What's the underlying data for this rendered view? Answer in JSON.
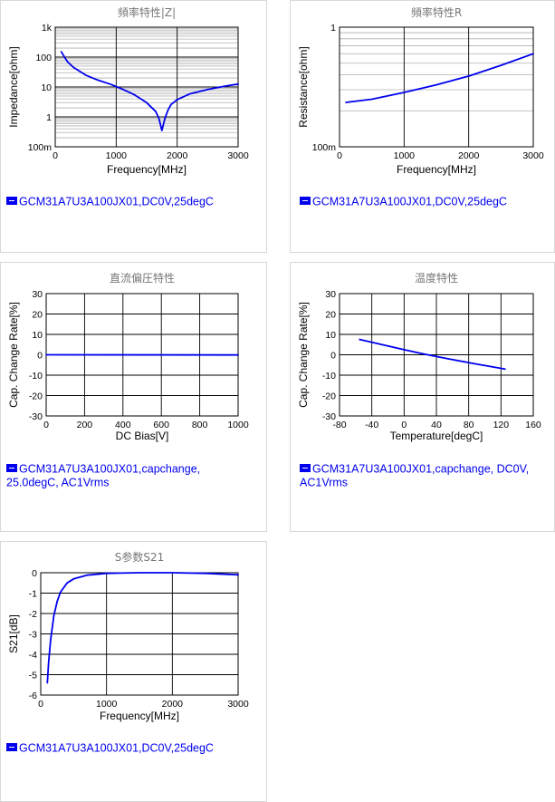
{
  "colors": {
    "series": "#0000ee",
    "grid_major": "#000000",
    "grid_minor": "#b0b0b0"
  },
  "chart_data": [
    {
      "type": "line",
      "title": "頻率特性|Z|",
      "xlabel": "Frequency[MHz]",
      "ylabel": "Impedance[ohm]",
      "xlim": [
        0,
        3000
      ],
      "ylim": [
        0.1,
        1000
      ],
      "yscale": "log",
      "x_ticks": [
        {
          "v": 0,
          "label": "0"
        },
        {
          "v": 1000,
          "label": "1000"
        },
        {
          "v": 2000,
          "label": "2000"
        },
        {
          "v": 3000,
          "label": "3000"
        }
      ],
      "y_ticks": [
        {
          "v": 1000,
          "label": "1k"
        },
        {
          "v": 100,
          "label": "100"
        },
        {
          "v": 10,
          "label": "10"
        },
        {
          "v": 1,
          "label": "1"
        },
        {
          "v": 0.1,
          "label": "100m"
        }
      ],
      "grid": true,
      "series": [
        {
          "x": [
            100,
            200,
            300,
            500,
            700,
            900,
            1100,
            1300,
            1500,
            1650,
            1700,
            1750,
            1800,
            1850,
            1900,
            2000,
            2200,
            2500,
            2800,
            3000
          ],
          "y": [
            150,
            70,
            45,
            25,
            17,
            12.5,
            8.5,
            5.5,
            3,
            1.5,
            0.9,
            0.35,
            0.9,
            1.7,
            2.6,
            3.8,
            5.8,
            8.3,
            10.8,
            12.5
          ]
        }
      ],
      "legend": "GCM31A7U3A100JX01,DC0V,25degC"
    },
    {
      "type": "line",
      "title": "頻率特性R",
      "xlabel": "Frequency[MHz]",
      "ylabel": "Resistance[ohm]",
      "xlim": [
        0,
        3000
      ],
      "ylim": [
        0.1,
        1
      ],
      "yscale": "log",
      "x_ticks": [
        {
          "v": 0,
          "label": "0"
        },
        {
          "v": 1000,
          "label": "1000"
        },
        {
          "v": 2000,
          "label": "2000"
        },
        {
          "v": 3000,
          "label": "3000"
        }
      ],
      "y_ticks": [
        {
          "v": 1,
          "label": "1"
        },
        {
          "v": 0.1,
          "label": "100m"
        }
      ],
      "grid": true,
      "series": [
        {
          "x": [
            100,
            500,
            1000,
            1500,
            2000,
            2500,
            3000
          ],
          "y": [
            0.235,
            0.25,
            0.285,
            0.33,
            0.39,
            0.48,
            0.6
          ]
        }
      ],
      "legend": "GCM31A7U3A100JX01,DC0V,25degC"
    },
    {
      "type": "line",
      "title": "直流偏圧特性",
      "xlabel": "DC Bias[V]",
      "ylabel": "Cap. Change Rate[%]",
      "xlim": [
        0,
        1000
      ],
      "ylim": [
        -30,
        30
      ],
      "x_ticks": [
        {
          "v": 0,
          "label": "0"
        },
        {
          "v": 200,
          "label": "200"
        },
        {
          "v": 400,
          "label": "400"
        },
        {
          "v": 600,
          "label": "600"
        },
        {
          "v": 800,
          "label": "800"
        },
        {
          "v": 1000,
          "label": "1000"
        }
      ],
      "y_ticks": [
        {
          "v": 30,
          "label": "30"
        },
        {
          "v": 20,
          "label": "20"
        },
        {
          "v": 10,
          "label": "10"
        },
        {
          "v": 0,
          "label": "0"
        },
        {
          "v": -10,
          "label": "-10"
        },
        {
          "v": -20,
          "label": "-20"
        },
        {
          "v": -30,
          "label": "-30"
        }
      ],
      "grid": true,
      "series": [
        {
          "x": [
            0,
            1000
          ],
          "y": [
            0,
            -0.1
          ]
        }
      ],
      "legend": "GCM31A7U3A100JX01,capchange, 25.0degC, AC1Vrms"
    },
    {
      "type": "line",
      "title": "温度特性",
      "xlabel": "Temperature[degC]",
      "ylabel": "Cap. Change Rate[%]",
      "xlim": [
        -80,
        160
      ],
      "ylim": [
        -30,
        30
      ],
      "x_ticks": [
        {
          "v": -80,
          "label": "-80"
        },
        {
          "v": -40,
          "label": "-40"
        },
        {
          "v": 0,
          "label": "0"
        },
        {
          "v": 40,
          "label": "40"
        },
        {
          "v": 80,
          "label": "80"
        },
        {
          "v": 120,
          "label": "120"
        },
        {
          "v": 160,
          "label": "160"
        }
      ],
      "y_ticks": [
        {
          "v": 30,
          "label": "30"
        },
        {
          "v": 20,
          "label": "20"
        },
        {
          "v": 10,
          "label": "10"
        },
        {
          "v": 0,
          "label": "0"
        },
        {
          "v": -10,
          "label": "-10"
        },
        {
          "v": -20,
          "label": "-20"
        },
        {
          "v": -30,
          "label": "-30"
        }
      ],
      "grid": true,
      "series": [
        {
          "x": [
            -55,
            -25,
            0,
            25,
            50,
            85,
            125
          ],
          "y": [
            7.5,
            4.8,
            2.5,
            0.3,
            -1.6,
            -4.2,
            -7.0
          ]
        }
      ],
      "legend": "GCM31A7U3A100JX01,capchange, DC0V, AC1Vrms"
    },
    {
      "type": "line",
      "title": "S参数S21",
      "xlabel": "Frequency[MHz]",
      "ylabel": "S21[dB]",
      "xlim": [
        0,
        3000
      ],
      "ylim": [
        -6,
        0
      ],
      "x_ticks": [
        {
          "v": 0,
          "label": "0"
        },
        {
          "v": 1000,
          "label": "1000"
        },
        {
          "v": 2000,
          "label": "2000"
        },
        {
          "v": 3000,
          "label": "3000"
        }
      ],
      "y_ticks": [
        {
          "v": 0,
          "label": "0"
        },
        {
          "v": -1,
          "label": "-1"
        },
        {
          "v": -2,
          "label": "-2"
        },
        {
          "v": -3,
          "label": "-3"
        },
        {
          "v": -4,
          "label": "-4"
        },
        {
          "v": -5,
          "label": "-5"
        },
        {
          "v": -6,
          "label": "-6"
        }
      ],
      "grid": true,
      "series": [
        {
          "x": [
            100,
            120,
            150,
            200,
            250,
            300,
            400,
            500,
            700,
            1000,
            1500,
            2000,
            2500,
            3000
          ],
          "y": [
            -5.4,
            -4.4,
            -3.3,
            -2.1,
            -1.4,
            -0.95,
            -0.5,
            -0.3,
            -0.12,
            -0.03,
            0,
            0,
            -0.03,
            -0.1
          ]
        }
      ],
      "legend": "GCM31A7U3A100JX01,DC0V,25degC"
    }
  ]
}
